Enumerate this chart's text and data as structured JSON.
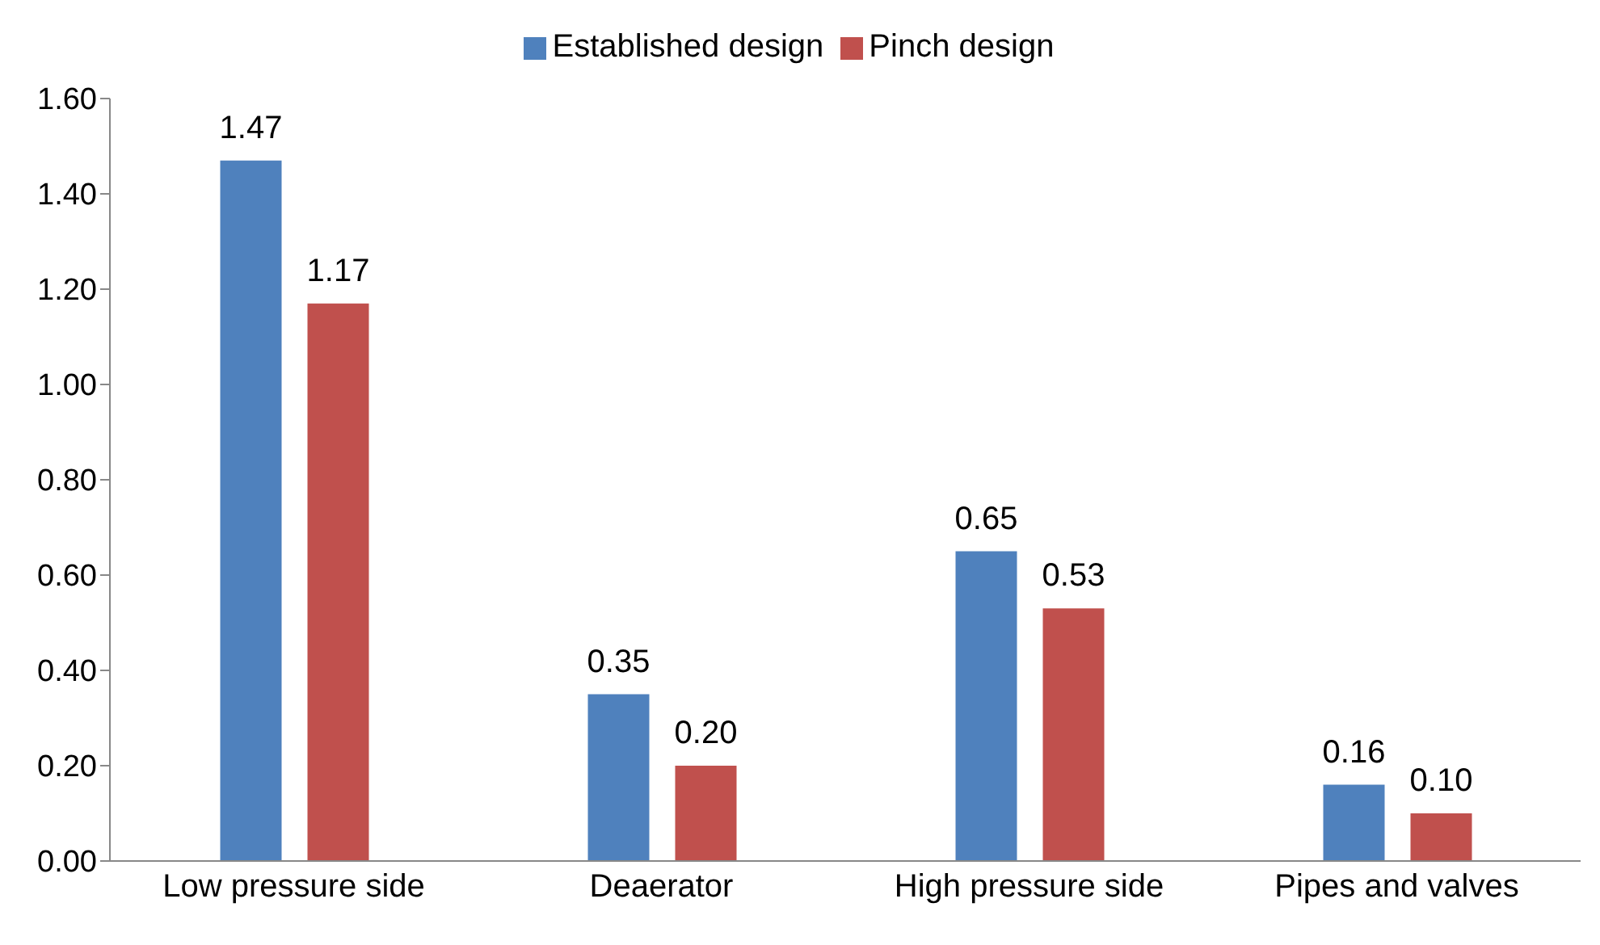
{
  "chart_data": {
    "type": "bar",
    "categories": [
      "Low pressure side",
      "Deaerator",
      "High pressure side",
      "Pipes and valves"
    ],
    "series": [
      {
        "name": "Established design",
        "color": "#4f81bd",
        "values": [
          1.47,
          0.35,
          0.65,
          0.16
        ],
        "value_labels": [
          "1.47",
          "0.35",
          "0.65",
          "0.16"
        ]
      },
      {
        "name": "Pinch design",
        "color": "#c0504d",
        "values": [
          1.17,
          0.2,
          0.53,
          0.1
        ],
        "value_labels": [
          "1.17",
          "0.20",
          "0.53",
          "0.10"
        ]
      }
    ],
    "ylim": [
      0,
      1.6
    ],
    "yticks": [
      {
        "value": 0,
        "label": "0.00"
      },
      {
        "value": 0.2,
        "label": "0.20"
      },
      {
        "value": 0.4,
        "label": "0.40"
      },
      {
        "value": 0.6,
        "label": "0.60"
      },
      {
        "value": 0.8,
        "label": "0.80"
      },
      {
        "value": 1.0,
        "label": "1.00"
      },
      {
        "value": 1.2,
        "label": "1.20"
      },
      {
        "value": 1.4,
        "label": "1.40"
      },
      {
        "value": 1.6,
        "label": "1.60"
      }
    ],
    "grid": false,
    "legend": "top"
  }
}
